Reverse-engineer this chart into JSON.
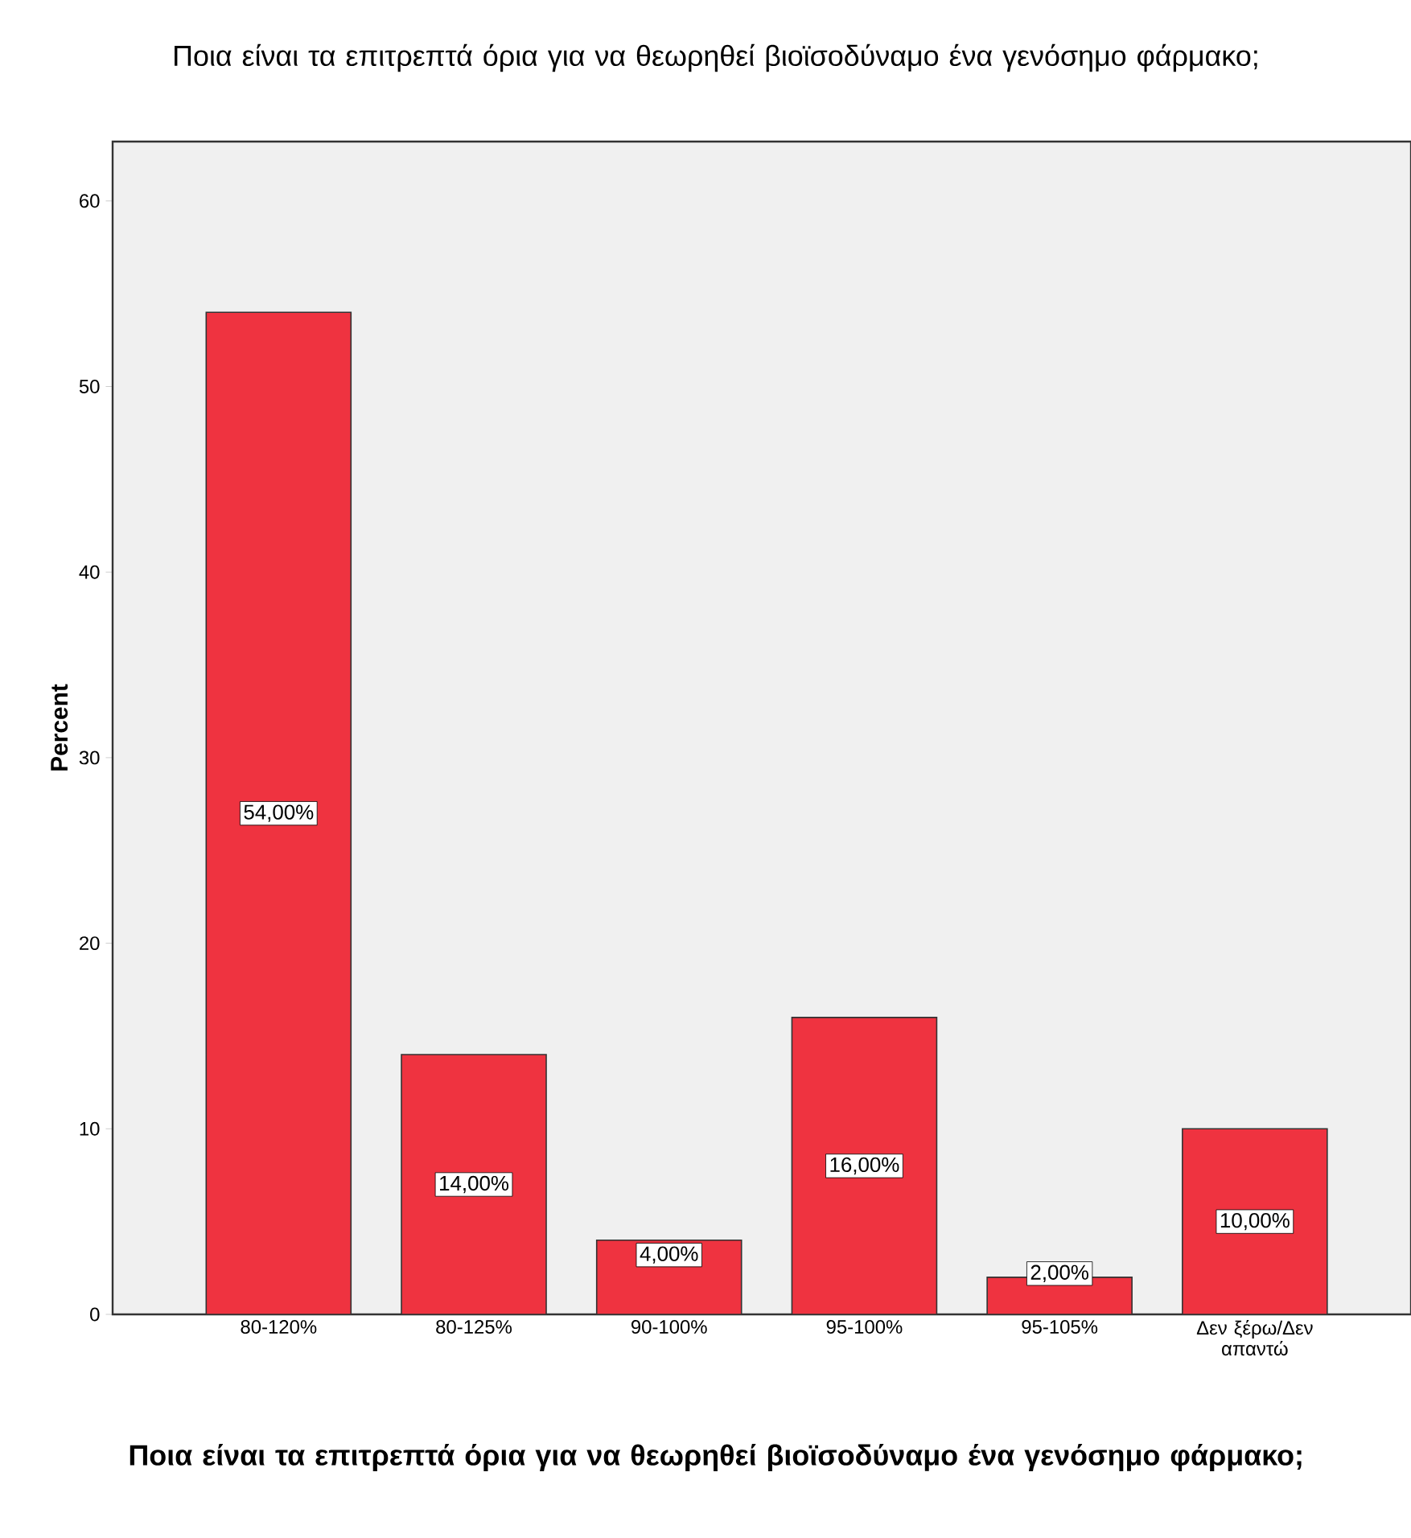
{
  "chart_data": {
    "type": "bar",
    "title": "Ποια είναι τα επιτρεπτά όρια για να θεωρηθεί βιοϊσοδύναμο ένα γενόσημο φάρμακο;",
    "xlabel": "Ποια είναι τα επιτρεπτά όρια για να θεωρηθεί βιοϊσοδύναμο ένα γενόσημο φάρμακο;",
    "ylabel": "Percent",
    "categories": [
      "80-120%",
      "80-125%",
      "90-100%",
      "95-100%",
      "95-105%",
      "Δεν ξέρω/Δεν απαντώ"
    ],
    "values": [
      54,
      14,
      4,
      16,
      2,
      10
    ],
    "value_labels": [
      "54,00%",
      "14,00%",
      "4,00%",
      "16,00%",
      "2,00%",
      "10,00%"
    ],
    "color": "#ef3340",
    "ylim": [
      0,
      63.2
    ],
    "yticks": [
      0,
      10,
      20,
      30,
      40,
      50,
      60
    ],
    "grid": false
  }
}
